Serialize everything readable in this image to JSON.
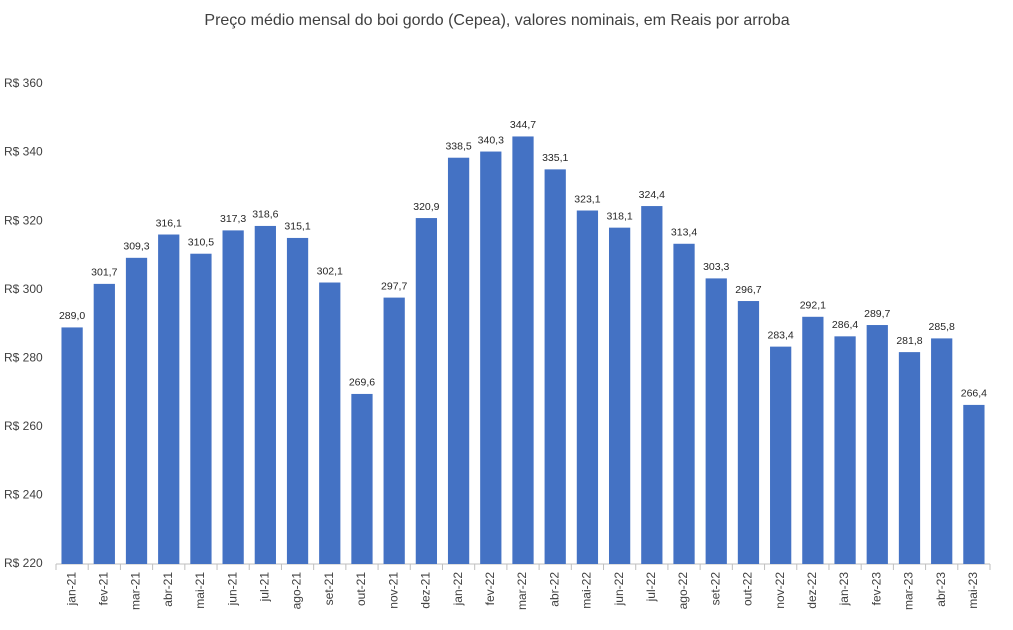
{
  "chart_data": {
    "type": "bar",
    "title": "Preço médio mensal do boi gordo (Cepea), valores nominais, em Reais por arroba",
    "categories": [
      "jan-21",
      "fev-21",
      "mar-21",
      "abr-21",
      "mai-21",
      "jun-21",
      "jul-21",
      "ago-21",
      "set-21",
      "out-21",
      "nov-21",
      "dez-21",
      "jan-22",
      "fev-22",
      "mar-22",
      "abr-22",
      "mai-22",
      "jun-22",
      "jul-22",
      "ago-22",
      "set-22",
      "out-22",
      "nov-22",
      "dez-22",
      "jan-23",
      "fev-23",
      "mar-23",
      "abr-23",
      "mai-23"
    ],
    "values": [
      289.0,
      301.7,
      309.3,
      316.1,
      310.5,
      317.3,
      318.6,
      315.1,
      302.1,
      269.6,
      297.7,
      320.9,
      338.5,
      340.3,
      344.7,
      335.1,
      323.1,
      318.1,
      324.4,
      313.4,
      303.3,
      296.7,
      283.4,
      292.1,
      286.4,
      289.7,
      281.8,
      285.8,
      266.4
    ],
    "value_labels": [
      "289,0",
      "301,7",
      "309,3",
      "316,1",
      "310,5",
      "317,3",
      "318,6",
      "315,1",
      "302,1",
      "269,6",
      "297,7",
      "320,9",
      "338,5",
      "340,3",
      "344,7",
      "335,1",
      "323,1",
      "318,1",
      "324,4",
      "313,4",
      "303,3",
      "296,7",
      "283,4",
      "292,1",
      "286,4",
      "289,7",
      "281,8",
      "285,8",
      "266,4"
    ],
    "color": "#4472c4",
    "ylim": [
      220,
      360
    ],
    "yticks": [
      {
        "value": 220,
        "label": "R$ 220"
      },
      {
        "value": 240,
        "label": "R$ 240"
      },
      {
        "value": 260,
        "label": "R$ 260"
      },
      {
        "value": 280,
        "label": "R$ 280"
      },
      {
        "value": 300,
        "label": "R$ 300"
      },
      {
        "value": 320,
        "label": "R$ 320"
      },
      {
        "value": 340,
        "label": "R$ 340"
      },
      {
        "value": 360,
        "label": "R$ 360"
      }
    ],
    "grid": false
  }
}
